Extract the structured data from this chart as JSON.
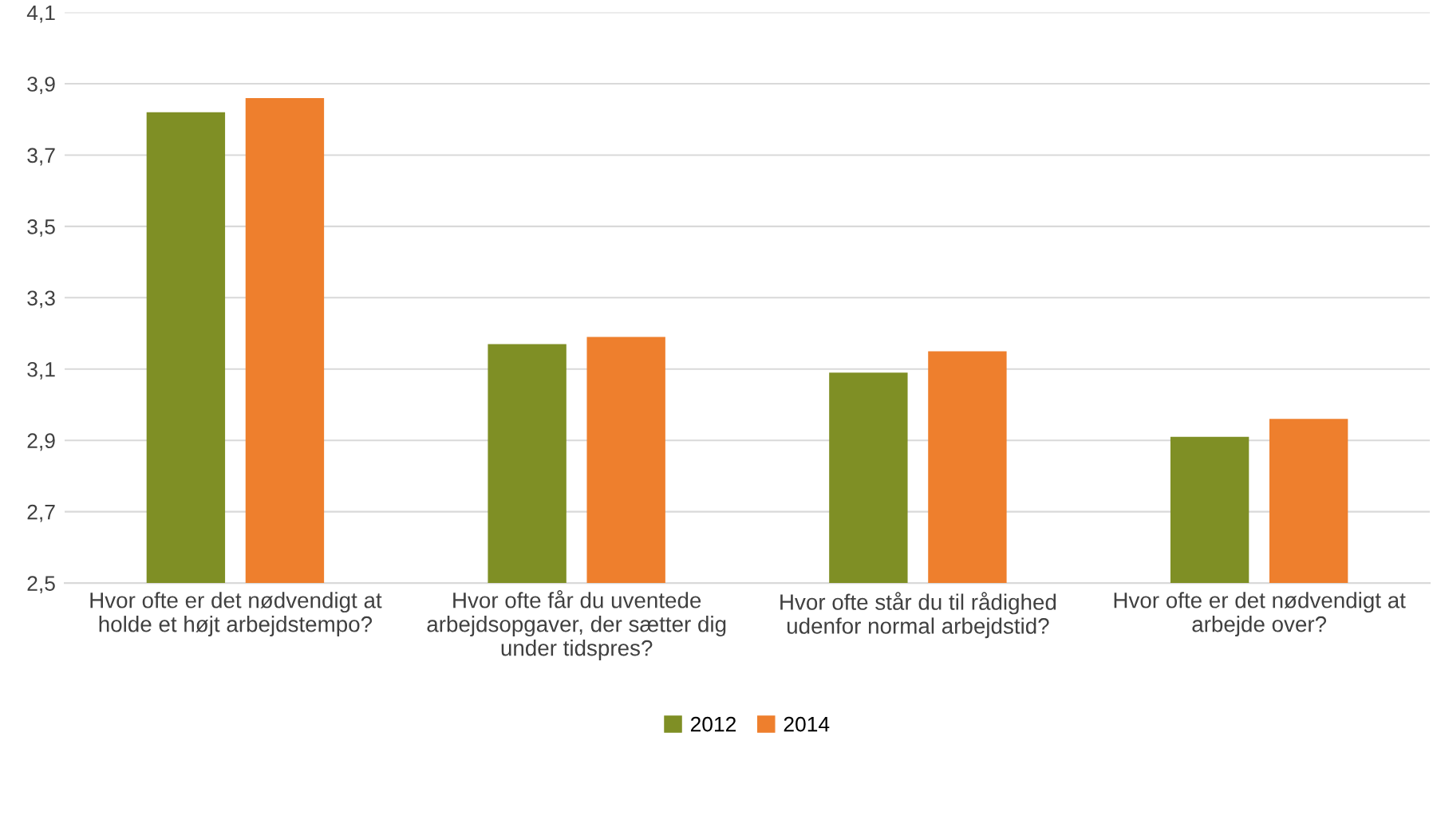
{
  "chart_data": {
    "type": "bar",
    "categories": [
      "Hvor ofte er det nødvendigt at\nholde et højt arbejdstempo?",
      "Hvor ofte får du uventede\narbejdsopgaver, der sætter dig\nunder tidspres?",
      "Hvor ofte står du til rådighed\nudenfor normal arbejdstid?",
      "Hvor ofte er det nødvendigt at\narbejde over?"
    ],
    "series": [
      {
        "name": "2012",
        "color": "#7f8f25",
        "values": [
          3.82,
          3.17,
          3.09,
          2.91
        ]
      },
      {
        "name": "2014",
        "color": "#ee7f2d",
        "values": [
          3.86,
          3.19,
          3.15,
          2.96
        ]
      }
    ],
    "ylim": [
      2.5,
      4.1
    ],
    "yticks": [
      {
        "value": 2.5,
        "label": "2,5"
      },
      {
        "value": 2.7,
        "label": "2,7"
      },
      {
        "value": 2.9,
        "label": "2,9"
      },
      {
        "value": 3.1,
        "label": "3,1"
      },
      {
        "value": 3.3,
        "label": "3,3"
      },
      {
        "value": 3.5,
        "label": "3,5"
      },
      {
        "value": 3.7,
        "label": "3,7"
      },
      {
        "value": 3.9,
        "label": "3,9"
      },
      {
        "value": 4.1,
        "label": "4,1"
      }
    ],
    "grid": "y",
    "legend": "bottom"
  }
}
